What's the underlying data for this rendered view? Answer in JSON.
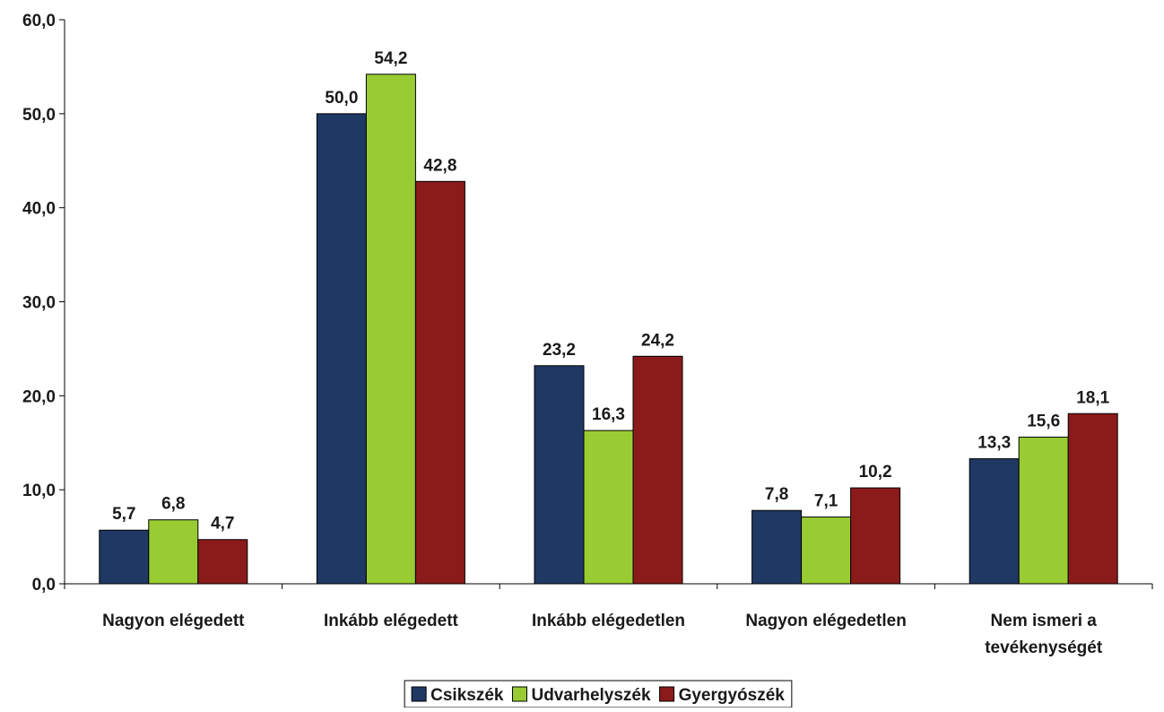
{
  "chart_data": {
    "type": "bar",
    "categories": [
      [
        "Nagyon elégedett"
      ],
      [
        "Inkább elégedett"
      ],
      [
        "Inkább elégedetlen"
      ],
      [
        "Nagyon elégedetlen"
      ],
      [
        "Nem ismeri a",
        "tevékenységét"
      ]
    ],
    "series": [
      {
        "name": "Csikszék",
        "color": "#1f3864",
        "values": [
          5.7,
          50.0,
          23.2,
          7.8,
          13.3
        ]
      },
      {
        "name": "Udvarhelyszék",
        "color": "#99cc33",
        "values": [
          6.8,
          54.2,
          16.3,
          7.1,
          15.6
        ]
      },
      {
        "name": "Gyergyószék",
        "color": "#8b1a1a",
        "values": [
          4.7,
          42.8,
          24.2,
          10.2,
          18.1
        ]
      }
    ],
    "yticks": [
      "0,0",
      "10,0",
      "20,0",
      "30,0",
      "40,0",
      "50,0",
      "60,0"
    ],
    "ylim": [
      0,
      60
    ],
    "legend_position": "bottom",
    "grid": false,
    "decimal_separator": ","
  }
}
